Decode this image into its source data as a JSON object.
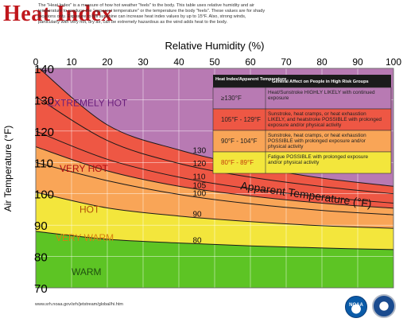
{
  "header": {
    "title": "Heat Index",
    "description": "The \"Heat Index\" is a measure of how hot weather \"feels\" to the body. This table uses relative humidity and air temperature to produce the \"apparent temperature\" or the temperature the body \"feels\". These values are for shady locations only. Exposure to full sunshine can increase heat index values by up to 15°F. Also, strong winds, particularly with very hot, dry air, can be extremely hazardous as the wind adds heat to the body."
  },
  "footer": {
    "source": "www.srh.noaa.gov/srh/jetstream/global/hi.htm",
    "logos": [
      "noaa-logo",
      "nws-logo"
    ]
  },
  "chart_data": {
    "type": "line",
    "title": "",
    "xlabel": "Relative Humidity (%)",
    "ylabel": "Air Temperature (°F)",
    "x_ticks": [
      "0",
      "10",
      "20",
      "30",
      "40",
      "50",
      "60",
      "70",
      "80",
      "90",
      "100"
    ],
    "y_ticks": [
      "70",
      "80",
      "90",
      "100",
      "110",
      "120",
      "130",
      "140"
    ],
    "xlim": [
      0,
      100
    ],
    "ylim": [
      70,
      140
    ],
    "curve_label": "Apparent Temperature (°F)",
    "series": [
      {
        "name": "80",
        "x": [
          0,
          20,
          40,
          60,
          80,
          100
        ],
        "y": [
          88.0,
          85.5,
          84.3,
          83.4,
          82.7,
          82.2
        ]
      },
      {
        "name": "90",
        "x": [
          0,
          20,
          40,
          60,
          80,
          100
        ],
        "y": [
          100.5,
          95.5,
          92.9,
          91.1,
          89.8,
          89.0
        ]
      },
      {
        "name": "100",
        "x": [
          0,
          20,
          40,
          60,
          80,
          100
        ],
        "y": [
          110.0,
          104.2,
          99.8,
          96.8,
          94.7,
          93.3
        ]
      },
      {
        "name": "105",
        "x": [
          0,
          20,
          40,
          60,
          80,
          100
        ],
        "y": [
          115.0,
          107.3,
          102.4,
          99.3,
          97.0,
          95.4
        ]
      },
      {
        "name": "110",
        "x": [
          0,
          20,
          40,
          60,
          80,
          100
        ],
        "y": [
          120.0,
          111.0,
          105.3,
          101.6,
          99.0,
          97.0
        ]
      },
      {
        "name": "120",
        "x": [
          0,
          20,
          40,
          60,
          80,
          100
        ],
        "y": [
          131.0,
          117.0,
          109.7,
          105.3,
          102.3,
          100.0
        ]
      },
      {
        "name": "130",
        "x": [
          0,
          20,
          40,
          60,
          80,
          100
        ],
        "y": [
          141.0,
          122.0,
          114.0,
          108.8,
          105.0,
          102.4
        ]
      }
    ],
    "bands": [
      {
        "label": "WARM",
        "color": "#5dc424",
        "label_color": "#1f4f10",
        "upper_series": "80"
      },
      {
        "label": "VERY WARM",
        "color": "#f3e63c",
        "label_color": "#d8810e",
        "upper_series": "90"
      },
      {
        "label": "HOT",
        "color": "#f9a557",
        "label_color": "#b14e0c",
        "upper_series": "105"
      },
      {
        "label": "VERY HOT",
        "color": "#ee5744",
        "label_color": "#b00d12",
        "upper_series": "130"
      },
      {
        "label": "EXTREMELY HOT",
        "color": "#b87ab3",
        "label_color": "#6a1f7c",
        "upper_series": null
      }
    ],
    "legend": {
      "position": "top-right",
      "header": [
        "Heat Index/Apparent Temperature",
        "General Affect on People in High Risk Groups"
      ],
      "rows": [
        {
          "range": "≥130°F",
          "effect": "Heat/Sunstroke HIGHLY LIKELY with continued exposure",
          "color": "#b87ab3"
        },
        {
          "range": "105°F - 129°F",
          "effect": "Sunstroke, heat cramps, or heat exhaustion LIKELY, and heatstroke POSSIBLE with prolonged exposure and/or physical activity",
          "color": "#ee5744"
        },
        {
          "range": "90°F - 104°F",
          "effect": "Sunstroke, heat cramps, or heat exhaustion POSSIBLE with prolonged exposure and/or physical activity",
          "color": "#f9a557"
        },
        {
          "range": "80°F - 89°F",
          "effect": "Fatigue POSSIBLE with prolonged exposure and/or physical activity",
          "color": "#f3e63c"
        }
      ]
    },
    "grid": true
  }
}
